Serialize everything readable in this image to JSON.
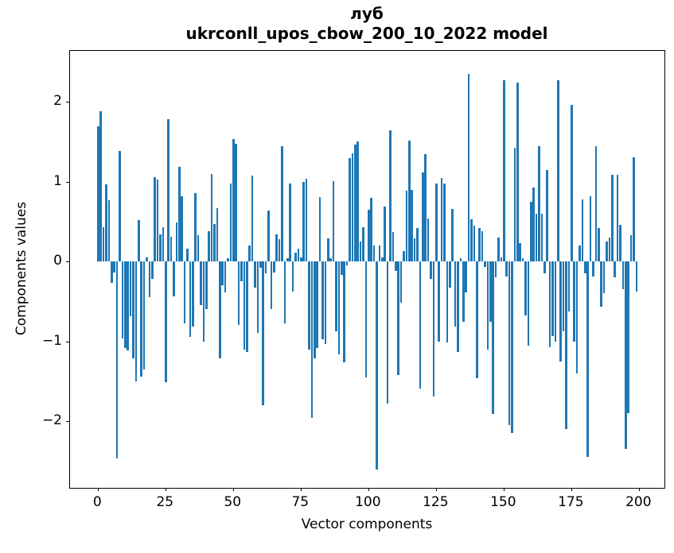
{
  "chart_data": {
    "type": "bar",
    "title": "луб",
    "subtitle": "ukrconll_upos_cbow_200_10_2022 model",
    "xlabel": "Vector components",
    "ylabel": "Components values",
    "bar_color": "#1f77b4",
    "grid": false,
    "legend": null,
    "x_start": 0,
    "xticks": [
      0,
      25,
      50,
      75,
      100,
      125,
      150,
      175,
      200
    ],
    "yticks": [
      2,
      1,
      0,
      -1,
      -2
    ],
    "xlim": [
      -10.4,
      209.4
    ],
    "ylim": [
      -2.84,
      2.64
    ],
    "values": [
      1.69,
      1.88,
      0.43,
      0.97,
      0.77,
      -0.27,
      -0.14,
      -2.47,
      1.38,
      -0.97,
      -1.08,
      -1.11,
      -0.69,
      -1.21,
      -1.5,
      0.52,
      -1.44,
      -1.35,
      0.05,
      -0.45,
      -0.22,
      1.05,
      1.02,
      0.34,
      0.43,
      -1.51,
      1.78,
      0.31,
      -0.44,
      0.49,
      1.18,
      0.82,
      -0.78,
      0.16,
      -0.95,
      -0.82,
      0.86,
      0.33,
      -0.55,
      -1.0,
      -0.6,
      0.38,
      1.09,
      0.47,
      0.67,
      -1.21,
      -0.3,
      -0.39,
      0.04,
      0.98,
      1.53,
      1.47,
      -0.8,
      -0.25,
      -1.1,
      -1.13,
      0.2,
      1.07,
      -0.33,
      -0.9,
      -0.08,
      -1.8,
      -0.15,
      0.64,
      -0.6,
      -0.14,
      0.34,
      0.28,
      1.44,
      -0.78,
      0.04,
      0.98,
      -0.38,
      0.11,
      0.16,
      0.05,
      1.0,
      1.03,
      -1.1,
      -1.96,
      -1.21,
      -1.08,
      0.81,
      -0.98,
      -1.03,
      0.29,
      0.04,
      1.01,
      -0.88,
      -1.16,
      -0.17,
      -1.26,
      -0.05,
      1.29,
      1.35,
      1.46,
      1.5,
      0.25,
      0.43,
      -1.45,
      0.65,
      0.8,
      0.2,
      -2.61,
      0.2,
      0.05,
      0.69,
      -1.78,
      1.64,
      0.37,
      -0.12,
      -1.42,
      -0.52,
      0.13,
      0.89,
      1.51,
      0.9,
      0.29,
      0.42,
      -1.59,
      1.11,
      1.34,
      0.54,
      -0.22,
      -1.69,
      0.98,
      -1.0,
      1.04,
      0.98,
      -1.01,
      -0.33,
      0.66,
      -0.82,
      -1.13,
      0.04,
      -0.76,
      -0.39,
      2.35,
      0.53,
      0.45,
      -1.46,
      0.42,
      0.38,
      -0.07,
      -1.1,
      -0.76,
      -1.91,
      -0.2,
      0.3,
      0.05,
      2.27,
      -0.19,
      -2.05,
      -2.15,
      1.42,
      2.24,
      0.23,
      0.04,
      -0.68,
      -1.05,
      0.75,
      0.93,
      0.6,
      1.44,
      0.6,
      -0.15,
      1.14,
      -1.07,
      -0.94,
      -1.0,
      2.27,
      -1.25,
      -0.88,
      -2.1,
      -0.63,
      1.96,
      -1.0,
      -1.4,
      0.2,
      0.78,
      -0.15,
      -2.45,
      0.82,
      -0.19,
      1.44,
      0.42,
      -0.57,
      -0.4,
      0.25,
      0.3,
      1.08,
      -0.2,
      1.08,
      0.46,
      -0.35,
      -2.35,
      -1.9,
      0.33,
      1.3,
      -0.38
    ]
  }
}
